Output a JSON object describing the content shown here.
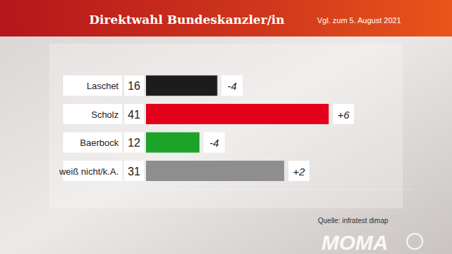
{
  "chart_data": {
    "type": "bar",
    "orientation": "horizontal",
    "title": "Direktwahl Bundeskanzler/in",
    "subtitle": "Vgl. zum 5. August 2021",
    "source": "Quelle: infratest dimap",
    "logo": "MOMA",
    "categories": [
      "Laschet",
      "Scholz",
      "Baerbock",
      "weiß nicht/k.A."
    ],
    "values": [
      16,
      41,
      12,
      31
    ],
    "colors": [
      "#1c1c1c",
      "#e2001a",
      "#1ea32a",
      "#8e8e8e"
    ],
    "changes": [
      -4,
      6,
      -4,
      2
    ],
    "change_labels": [
      "-4",
      "+6",
      "-4",
      "+2"
    ],
    "xlim": [
      0,
      60
    ],
    "data_labels": true,
    "tick_labels": false,
    "grid": false
  }
}
